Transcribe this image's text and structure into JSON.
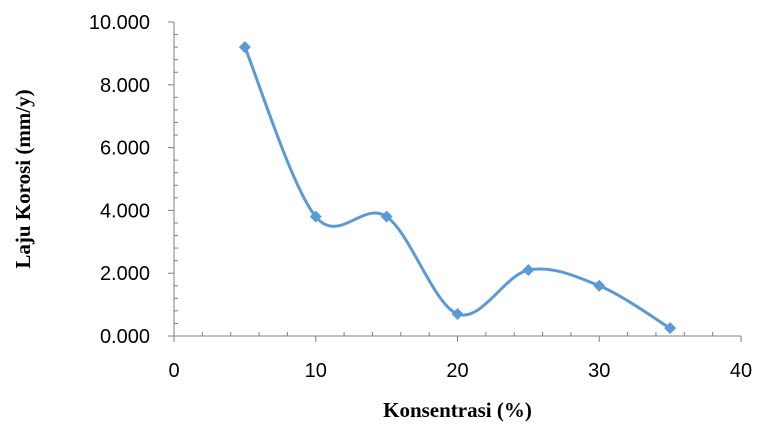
{
  "chart_data": {
    "type": "scatter",
    "title": "",
    "xlabel": "Konsentrasi (%)",
    "ylabel": "Laju Korosi (mm/y)",
    "xlim": [
      0,
      40
    ],
    "ylim": [
      0,
      10
    ],
    "x_ticks": [
      0,
      10,
      20,
      30,
      40
    ],
    "x_tick_labels": [
      "0",
      "10",
      "20",
      "30",
      "40"
    ],
    "y_ticks": [
      0,
      2,
      4,
      6,
      8,
      10
    ],
    "y_tick_labels": [
      "0.000",
      "2.000",
      "4.000",
      "6.000",
      "8.000",
      "10.000"
    ],
    "grid": false,
    "legend": "none",
    "series": [
      {
        "color": "#5b9bd5",
        "marker": "diamond",
        "line": "smooth",
        "x": [
          5,
          10,
          15,
          20,
          25,
          30,
          35
        ],
        "y": [
          9.2,
          3.8,
          3.8,
          0.7,
          2.1,
          1.6,
          0.25
        ]
      }
    ]
  }
}
